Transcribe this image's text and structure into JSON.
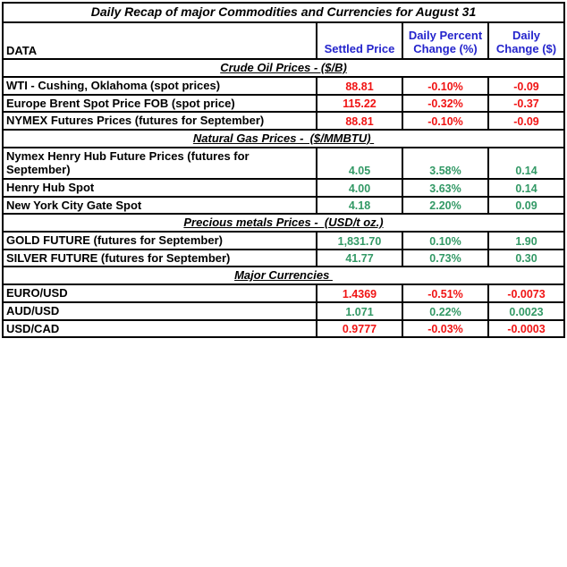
{
  "title": "Daily Recap of major Commodities and Currencies for August 31",
  "colors": {
    "positive": "#339966",
    "negative": "#f01414",
    "header-blue": "#2424cc",
    "border": "#000000",
    "text": "#000000"
  },
  "header": {
    "data": "DATA",
    "settled_price": "Settled Price",
    "daily_percent": "Daily Percent Change (%)",
    "daily_change": "Daily Change ($)"
  },
  "sections": [
    {
      "heading": "Crude Oil Prices - ($/B)",
      "rows": [
        {
          "label": "WTI - Cushing, Oklahoma (spot prices)",
          "settled": "88.81",
          "percent": "-0.10%",
          "change": "-0.09",
          "tone": "neg"
        },
        {
          "label": "Europe Brent Spot Price FOB (spot price)",
          "settled": "115.22",
          "percent": "-0.32%",
          "change": "-0.37",
          "tone": "neg"
        },
        {
          "label": "NYMEX Futures Prices (futures for September)",
          "settled": "88.81",
          "percent": "-0.10%",
          "change": "-0.09",
          "tone": "neg"
        }
      ]
    },
    {
      "heading": "Natural Gas Prices -  ($/MMBTU) ",
      "rows": [
        {
          "label": "Nymex Henry Hub Future Prices (futures for September)",
          "settled": "4.05",
          "percent": "3.58%",
          "change": "0.14",
          "tone": "pos"
        },
        {
          "label": "Henry Hub Spot",
          "settled": "4.00",
          "percent": "3.63%",
          "change": "0.14",
          "tone": "pos"
        },
        {
          "label": "New York City Gate Spot",
          "settled": "4.18",
          "percent": "2.20%",
          "change": "0.09",
          "tone": "pos"
        }
      ]
    },
    {
      "heading": "Precious metals Prices -  (USD/t oz.)",
      "rows": [
        {
          "label": "GOLD FUTURE (futures for September)",
          "settled": "1,831.70",
          "percent": "0.10%",
          "change": "1.90",
          "tone": "pos"
        },
        {
          "label": "SILVER FUTURE (futures for  September)",
          "settled": "41.77",
          "percent": "0.73%",
          "change": "0.30",
          "tone": "pos"
        }
      ]
    },
    {
      "heading": "Major Currencies ",
      "rows": [
        {
          "label": "EURO/USD",
          "settled": "1.4369",
          "percent": "-0.51%",
          "change": "-0.0073",
          "tone": "neg"
        },
        {
          "label": "AUD/USD",
          "settled": "1.071",
          "percent": "0.22%",
          "change": "0.0023",
          "tone": "pos"
        },
        {
          "label": "USD/CAD",
          "settled": "0.9777",
          "percent": "-0.03%",
          "change": "-0.0003",
          "tone": "neg"
        }
      ]
    }
  ]
}
